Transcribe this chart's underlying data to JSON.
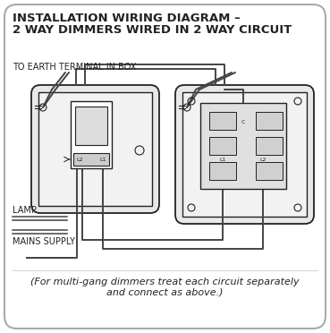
{
  "title_line1": "INSTALLATION WIRING DIAGRAM –",
  "title_line2": "2 WAY DIMMERS WIRED IN 2 WAY CIRCUIT",
  "label_earth": "TO EARTH TERMINAL IN BOX",
  "label_lamp": "LAMP",
  "label_mains": "MAINS SUPPLY",
  "footer": "(For multi-gang dimmers treat each circuit separately\nand connect as above.)",
  "bg_color": "#ffffff",
  "border_color": "#aaaaaa",
  "line_color": "#222222",
  "wire_color": "#444444",
  "title_fontsize": 9.5,
  "label_fontsize": 7.0,
  "footer_fontsize": 8.0
}
